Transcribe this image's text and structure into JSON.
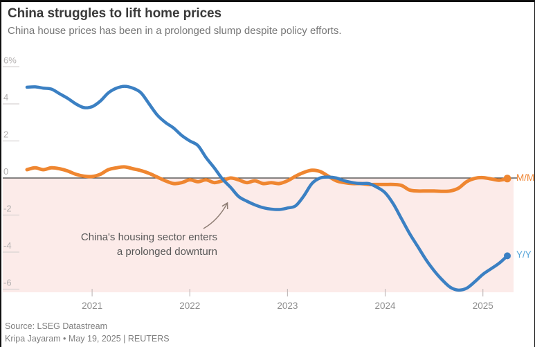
{
  "header": {
    "title": "China struggles to lift home prices",
    "subtitle": "China house prices has been in a prolonged slump despite policy efforts."
  },
  "chart_data": {
    "type": "line",
    "unit": "percent",
    "x_monthly_start": "2020-05",
    "x_monthly_end": "2025-04",
    "xtick_labels": [
      "2021",
      "2022",
      "2023",
      "2024",
      "2025"
    ],
    "ytick_values": [
      6,
      4,
      2,
      0,
      -2,
      -4,
      -6
    ],
    "ytick_labels": [
      "6%",
      "4",
      "2",
      "0",
      "-2",
      "-4",
      "-6"
    ],
    "ylim": [
      -6.5,
      6.9
    ],
    "grid": "ticks-only",
    "negative_region_color": "#fcebe9",
    "zero_line_color": "#3d3d3d",
    "series": [
      {
        "name": "Y/Y",
        "color": "#3b80c3",
        "values": [
          4.9,
          4.92,
          4.85,
          4.8,
          4.55,
          4.3,
          4.0,
          3.8,
          3.85,
          4.15,
          4.6,
          4.85,
          4.95,
          4.85,
          4.6,
          4.0,
          3.4,
          3.0,
          2.7,
          2.3,
          2.0,
          1.75,
          1.1,
          0.55,
          -0.05,
          -0.5,
          -1.0,
          -1.25,
          -1.45,
          -1.6,
          -1.68,
          -1.7,
          -1.62,
          -1.5,
          -0.97,
          -0.3,
          0.0,
          0.05,
          0.0,
          -0.15,
          -0.25,
          -0.3,
          -0.3,
          -0.5,
          -0.8,
          -1.4,
          -2.2,
          -3.0,
          -3.7,
          -4.4,
          -5.0,
          -5.5,
          -5.9,
          -6.05,
          -5.95,
          -5.6,
          -5.2,
          -4.9,
          -4.6,
          -4.2
        ]
      },
      {
        "name": "M/M",
        "color": "#ef8630",
        "values": [
          0.45,
          0.55,
          0.45,
          0.55,
          0.5,
          0.38,
          0.2,
          0.1,
          0.08,
          0.2,
          0.45,
          0.55,
          0.6,
          0.5,
          0.4,
          0.25,
          0.05,
          -0.15,
          -0.3,
          -0.25,
          -0.1,
          -0.2,
          -0.1,
          -0.25,
          -0.15,
          0.0,
          -0.1,
          -0.25,
          -0.15,
          -0.3,
          -0.25,
          -0.3,
          -0.15,
          0.1,
          0.3,
          0.42,
          0.35,
          0.1,
          -0.15,
          -0.25,
          -0.3,
          -0.3,
          -0.35,
          -0.35,
          -0.35,
          -0.35,
          -0.4,
          -0.65,
          -0.7,
          -0.7,
          -0.7,
          -0.72,
          -0.7,
          -0.55,
          -0.2,
          -0.02,
          0.02,
          -0.05,
          -0.12,
          -0.03
        ]
      }
    ],
    "series_labels": {
      "yy": "Y/Y",
      "mm": "M/M"
    },
    "legend_position": "right-of-line-ends",
    "annotation": {
      "line1": "China's housing sector enters",
      "line2": "a prolonged downturn"
    }
  },
  "footer": {
    "source": "Source: LSEG Datastream",
    "byline": "Kripa Jayaram • May 19, 2025 | REUTERS"
  }
}
